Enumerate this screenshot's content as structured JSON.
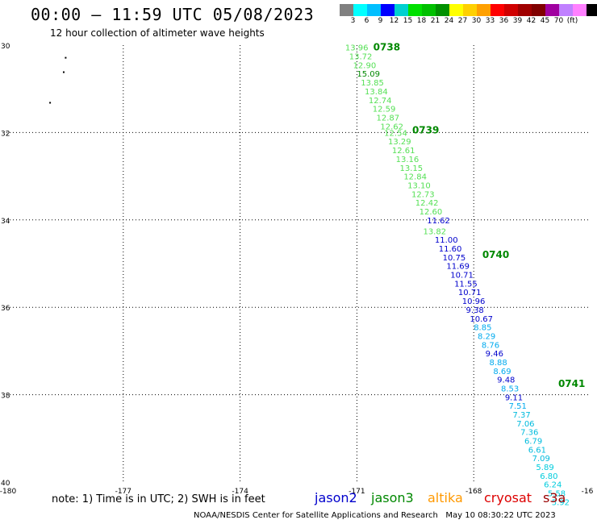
{
  "title": "00:00 – 11:59 UTC 05/08/2023",
  "subtitle": "12 hour collection of altimeter wave heights",
  "colorbar": {
    "colors": [
      "#808080",
      "#00ffff",
      "#00bfff",
      "#0000ff",
      "#00d0d0",
      "#00e000",
      "#00c000",
      "#009000",
      "#ffff00",
      "#ffd000",
      "#ffa000",
      "#ff0000",
      "#d00000",
      "#a00000",
      "#800000",
      "#a000a0",
      "#c080ff",
      "#ff80ff",
      "#000000"
    ],
    "labels": [
      "3",
      "6",
      "9",
      "12",
      "15",
      "18",
      "21",
      "24",
      "27",
      "30",
      "33",
      "36",
      "39",
      "42",
      "45",
      "70",
      "(ft)"
    ]
  },
  "axes": {
    "x_ticks": [
      "-180",
      "-177",
      "-174",
      "-171",
      "-168",
      "-16"
    ],
    "y_ticks": [
      "-30",
      "-32",
      "-34",
      "-36",
      "-38",
      "-40"
    ],
    "xlim": [
      -180,
      -165
    ],
    "ylim": [
      -40,
      -30
    ]
  },
  "note": "note: 1) Time is in UTC; 2) SWH is in feet",
  "satellites": [
    {
      "name": "jason2",
      "color": "#0000cc"
    },
    {
      "name": "jason3",
      "color": "#008800"
    },
    {
      "name": "altika",
      "color": "#ff9900"
    },
    {
      "name": "cryosat",
      "color": "#dd0000"
    },
    {
      "name": "s3a",
      "color": "#990000"
    }
  ],
  "footer": "NOAA/NESDIS Center for Satellite Applications and Research   May 10 08:30:22 UTC 2023",
  "chart_data": {
    "type": "scatter",
    "xlabel": "",
    "ylabel": "",
    "times": [
      {
        "label": "0738",
        "lon": -170.58,
        "lat": -30.05
      },
      {
        "label": "0739",
        "lon": -169.58,
        "lat": -31.95
      },
      {
        "label": "0740",
        "lon": -167.78,
        "lat": -34.8
      },
      {
        "label": "0741",
        "lon": -165.83,
        "lat": -37.75
      }
    ],
    "points": [
      {
        "lon": -171.3,
        "lat": -30.05,
        "v": "13.96",
        "c": "#55e055"
      },
      {
        "lon": -171.2,
        "lat": -30.25,
        "v": "13.72",
        "c": "#55e055"
      },
      {
        "lon": -171.1,
        "lat": -30.45,
        "v": "12.90",
        "c": "#55e055"
      },
      {
        "lon": -171.0,
        "lat": -30.65,
        "v": "15.09",
        "c": "#008800"
      },
      {
        "lon": -170.9,
        "lat": -30.85,
        "v": "13.85",
        "c": "#55e055"
      },
      {
        "lon": -170.8,
        "lat": -31.05,
        "v": "13.84",
        "c": "#55e055"
      },
      {
        "lon": -170.7,
        "lat": -31.25,
        "v": "12.74",
        "c": "#55e055"
      },
      {
        "lon": -170.6,
        "lat": -31.45,
        "v": "12.59",
        "c": "#55e055"
      },
      {
        "lon": -170.5,
        "lat": -31.65,
        "v": "12.87",
        "c": "#55e055"
      },
      {
        "lon": -170.4,
        "lat": -31.85,
        "v": "12.62",
        "c": "#55e055"
      },
      {
        "lon": -170.3,
        "lat": -32.0,
        "v": "12.54",
        "c": "#55e055"
      },
      {
        "lon": -170.2,
        "lat": -32.2,
        "v": "13.29",
        "c": "#55e055"
      },
      {
        "lon": -170.1,
        "lat": -32.4,
        "v": "12.61",
        "c": "#55e055"
      },
      {
        "lon": -170.0,
        "lat": -32.6,
        "v": "13.16",
        "c": "#55e055"
      },
      {
        "lon": -169.9,
        "lat": -32.8,
        "v": "13.15",
        "c": "#55e055"
      },
      {
        "lon": -169.8,
        "lat": -33.0,
        "v": "12.84",
        "c": "#55e055"
      },
      {
        "lon": -169.7,
        "lat": -33.2,
        "v": "13.10",
        "c": "#55e055"
      },
      {
        "lon": -169.6,
        "lat": -33.4,
        "v": "12.73",
        "c": "#55e055"
      },
      {
        "lon": -169.5,
        "lat": -33.6,
        "v": "12.42",
        "c": "#55e055"
      },
      {
        "lon": -169.4,
        "lat": -33.8,
        "v": "12.60",
        "c": "#55e055"
      },
      {
        "lon": -169.2,
        "lat": -34.0,
        "v": "11.62",
        "c": "#0000cc"
      },
      {
        "lon": -169.3,
        "lat": -34.25,
        "v": "13.82",
        "c": "#55e055"
      },
      {
        "lon": -169.0,
        "lat": -34.45,
        "v": "11.00",
        "c": "#0000cc"
      },
      {
        "lon": -168.9,
        "lat": -34.65,
        "v": "11.60",
        "c": "#0000cc"
      },
      {
        "lon": -168.8,
        "lat": -34.85,
        "v": "10.75",
        "c": "#0000cc"
      },
      {
        "lon": -168.7,
        "lat": -35.05,
        "v": "11.69",
        "c": "#0000cc"
      },
      {
        "lon": -168.6,
        "lat": -35.25,
        "v": "10.71",
        "c": "#0000cc"
      },
      {
        "lon": -168.5,
        "lat": -35.45,
        "v": "11.55",
        "c": "#0000cc"
      },
      {
        "lon": -168.4,
        "lat": -35.65,
        "v": "10.71",
        "c": "#0000cc"
      },
      {
        "lon": -168.3,
        "lat": -35.85,
        "v": "10.96",
        "c": "#0000cc"
      },
      {
        "lon": -168.2,
        "lat": -36.05,
        "v": "9.38",
        "c": "#0000cc"
      },
      {
        "lon": -168.1,
        "lat": -36.25,
        "v": "10.67",
        "c": "#0000cc"
      },
      {
        "lon": -168.0,
        "lat": -36.45,
        "v": "8.85",
        "c": "#00aaee"
      },
      {
        "lon": -167.9,
        "lat": -36.65,
        "v": "8.29",
        "c": "#00aaee"
      },
      {
        "lon": -167.8,
        "lat": -36.85,
        "v": "8.76",
        "c": "#00aaee"
      },
      {
        "lon": -167.7,
        "lat": -37.05,
        "v": "9.46",
        "c": "#0000cc"
      },
      {
        "lon": -167.6,
        "lat": -37.25,
        "v": "8.88",
        "c": "#00aaee"
      },
      {
        "lon": -167.5,
        "lat": -37.45,
        "v": "8.69",
        "c": "#00aaee"
      },
      {
        "lon": -167.4,
        "lat": -37.65,
        "v": "9.48",
        "c": "#0000cc"
      },
      {
        "lon": -167.3,
        "lat": -37.85,
        "v": "8.53",
        "c": "#00aaee"
      },
      {
        "lon": -167.2,
        "lat": -38.05,
        "v": "9.11",
        "c": "#0000cc"
      },
      {
        "lon": -167.1,
        "lat": -38.25,
        "v": "7.51",
        "c": "#00aaee"
      },
      {
        "lon": -167.0,
        "lat": -38.45,
        "v": "7.37",
        "c": "#00bbdd"
      },
      {
        "lon": -166.9,
        "lat": -38.65,
        "v": "7.06",
        "c": "#00bbdd"
      },
      {
        "lon": -166.8,
        "lat": -38.85,
        "v": "7.36",
        "c": "#00bbdd"
      },
      {
        "lon": -166.7,
        "lat": -39.05,
        "v": "6.79",
        "c": "#00bbdd"
      },
      {
        "lon": -166.6,
        "lat": -39.25,
        "v": "6.61",
        "c": "#00bbdd"
      },
      {
        "lon": -166.5,
        "lat": -39.45,
        "v": "7.09",
        "c": "#00bbdd"
      },
      {
        "lon": -166.4,
        "lat": -39.65,
        "v": "5.89",
        "c": "#00ccdd"
      },
      {
        "lon": -166.3,
        "lat": -39.85,
        "v": "6.80",
        "c": "#00ccdd"
      },
      {
        "lon": -166.2,
        "lat": -40.05,
        "v": "6.24",
        "c": "#00ccdd"
      },
      {
        "lon": -166.1,
        "lat": -40.25,
        "v": "5.58",
        "c": "#00ccdd"
      },
      {
        "lon": -166.0,
        "lat": -40.45,
        "v": "5.92",
        "c": "#00ccdd"
      }
    ],
    "islands": [
      {
        "lon": -178.5,
        "lat": -30.27
      },
      {
        "lon": -178.55,
        "lat": -30.6
      },
      {
        "lon": -178.9,
        "lat": -31.3
      }
    ]
  }
}
